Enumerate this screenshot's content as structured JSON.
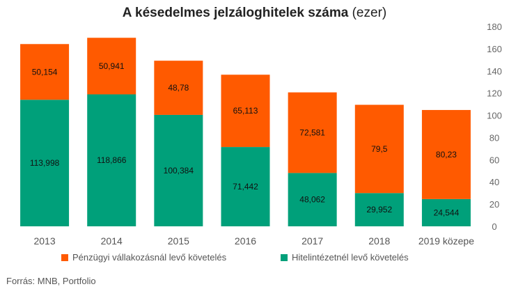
{
  "chart_data": {
    "type": "bar",
    "stacked": true,
    "title": "A késedelmes jelzáloghitelek száma",
    "title_unit": "(ezer)",
    "categories": [
      "2013",
      "2014",
      "2015",
      "2016",
      "2017",
      "2018",
      "2019 közepe"
    ],
    "series": [
      {
        "name": "Hitelintézetnél levő követelés",
        "color": "#00a07a",
        "values": [
          113.998,
          118.866,
          100.384,
          71.442,
          48.062,
          29.952,
          24.544
        ],
        "labels": [
          "113,998",
          "118,866",
          "100,384",
          "71,442",
          "48,062",
          "29,952",
          "24,544"
        ]
      },
      {
        "name": "Pénzügyi vállakozásnál levő követelés",
        "color": "#ff5a00",
        "values": [
          50.154,
          50.941,
          48.78,
          65.113,
          72.581,
          79.5,
          80.23
        ],
        "labels": [
          "50,154",
          "50,941",
          "48,78",
          "65,113",
          "72,581",
          "79,5",
          "80,23"
        ]
      }
    ],
    "y_axis": {
      "position": "right",
      "ylim": [
        0,
        180
      ],
      "ticks": [
        0,
        20,
        40,
        60,
        80,
        100,
        120,
        140,
        160,
        180
      ]
    },
    "grid": false,
    "legend": {
      "placement": "bottom",
      "order": [
        "Pénzügyi vállakozásnál levő követelés",
        "Hitelintézetnél levő követelés"
      ]
    }
  },
  "source": "Forrás: MNB, Portfolio"
}
